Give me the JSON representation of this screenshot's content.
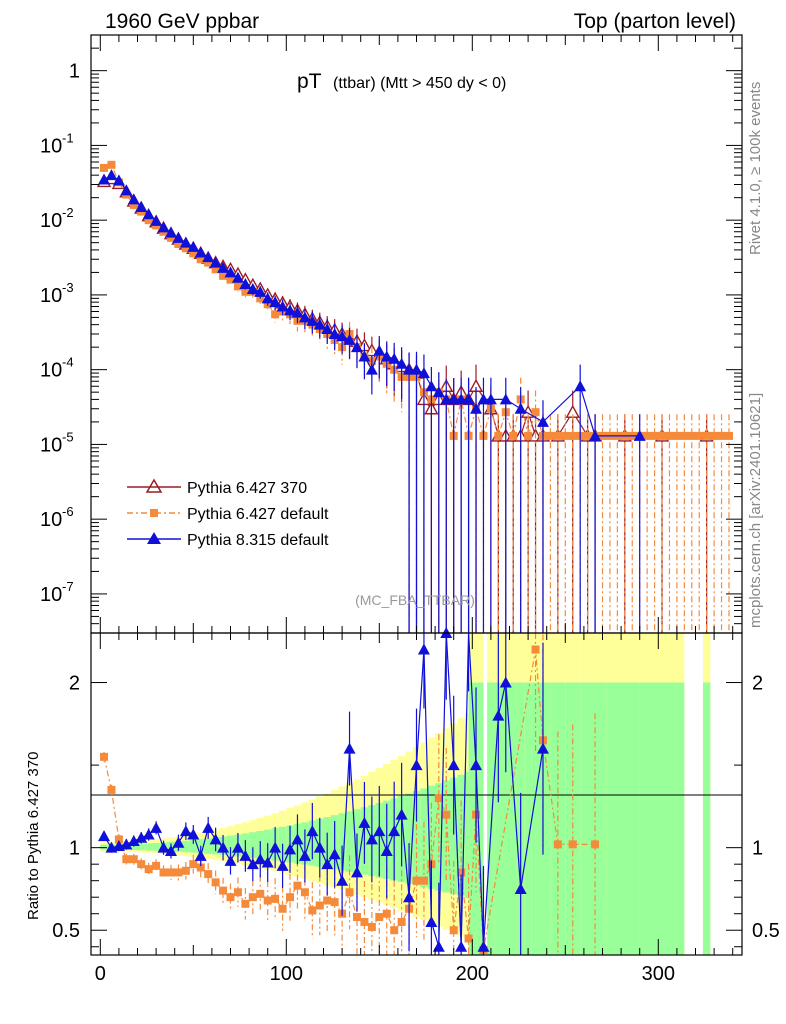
{
  "header": {
    "left": "1960 GeV ppbar",
    "right": "Top (parton level)"
  },
  "side_labels": {
    "rivet": "Rivet 4.1.0, ≥ 100k events",
    "mcplots": "mcplots.cern.ch [arXiv:2401.10621]"
  },
  "title": {
    "main": "pT",
    "sub": "(ttbar) (Mtt > 450 dy < 0)"
  },
  "watermark": "(MC_FBA_TTBAR)",
  "ratio_ylabel": "Ratio to Pythia 6.427 370",
  "colors": {
    "p6_370": "#9b1c25",
    "p6_default": "#f58a3a",
    "p8": "#1010d8",
    "band_yellow": "#ffff99",
    "band_green": "#99ff99"
  },
  "chart_data": {
    "type": "scatter",
    "xlabel": "",
    "xlim": [
      -5,
      345
    ],
    "x_ticks": [
      "0",
      "100",
      "200",
      "300"
    ],
    "x_tick_values": [
      0,
      100,
      200,
      300
    ],
    "main": {
      "yscale": "log",
      "ylim": [
        3e-08,
        3
      ],
      "y_ticks": [
        "1",
        "10^-1",
        "10^-2",
        "10^-3",
        "10^-4",
        "10^-5",
        "10^-6",
        "10^-7"
      ]
    },
    "ratio": {
      "ylim": [
        0.35,
        2.3
      ],
      "y_ticks": [
        "0.5",
        "1",
        "2"
      ],
      "y_tick_values": [
        0.5,
        1,
        2
      ]
    },
    "series": [
      {
        "name": "Pythia 6.427 370",
        "x": [
          2,
          6,
          10,
          14,
          18,
          22,
          26,
          30,
          34,
          38,
          42,
          46,
          50,
          54,
          58,
          62,
          66,
          70,
          74,
          78,
          82,
          86,
          90,
          94,
          98,
          102,
          106,
          110,
          114,
          118,
          122,
          126,
          130,
          134,
          138,
          142,
          146,
          150,
          154,
          158,
          162,
          166,
          170,
          174,
          178,
          182,
          186,
          190,
          194,
          198,
          202,
          210,
          214,
          218,
          222,
          226,
          230,
          234,
          238,
          246,
          254,
          262,
          266,
          282,
          302,
          326
        ],
        "y": [
          0.033,
          0.036,
          0.031,
          0.024,
          0.018,
          0.0145,
          0.0115,
          0.0095,
          0.0078,
          0.0066,
          0.0056,
          0.0048,
          0.0042,
          0.0036,
          0.0031,
          0.0027,
          0.0024,
          0.0022,
          0.0019,
          0.0016,
          0.00135,
          0.0012,
          0.001,
          0.00088,
          0.00078,
          0.0007,
          0.00062,
          0.00055,
          0.00048,
          0.00043,
          0.00038,
          0.00034,
          0.0003,
          0.00026,
          0.00024,
          0.00021,
          0.00018,
          0.00016,
          0.00014,
          0.00012,
          0.00011,
          0.0001,
          9e-05,
          4e-05,
          3e-05,
          4e-05,
          6e-05,
          4e-05,
          5e-05,
          4e-05,
          6e-05,
          3e-05,
          1.3e-05,
          1.3e-05,
          1.3e-05,
          1.3e-05,
          2.7e-05,
          1.3e-05,
          1.3e-05,
          1.3e-05,
          2.7e-05,
          1.3e-05,
          1.3e-05,
          1.3e-05,
          1.3e-05,
          1.3e-05
        ]
      },
      {
        "name": "Pythia 6.427 default",
        "x": [
          2,
          6,
          10,
          14,
          18,
          22,
          26,
          30,
          34,
          38,
          42,
          46,
          50,
          54,
          58,
          62,
          66,
          70,
          74,
          78,
          82,
          86,
          90,
          94,
          98,
          102,
          106,
          110,
          114,
          118,
          122,
          126,
          130,
          134,
          138,
          142,
          146,
          150,
          154,
          158,
          162,
          166,
          170,
          174,
          178,
          182,
          186,
          190,
          194,
          198,
          202,
          206,
          210,
          214,
          218,
          222,
          226,
          230,
          234,
          238,
          242,
          246,
          250,
          254,
          258,
          262,
          266,
          270,
          274,
          278,
          282,
          286,
          290,
          294,
          298,
          302,
          306,
          310,
          314,
          318,
          322,
          326,
          330,
          334,
          338
        ],
        "y": [
          0.05,
          0.055,
          0.032,
          0.022,
          0.016,
          0.013,
          0.01,
          0.0085,
          0.007,
          0.0058,
          0.0048,
          0.0042,
          0.0036,
          0.003,
          0.0027,
          0.0022,
          0.0018,
          0.0016,
          0.0013,
          0.0011,
          0.0011,
          0.0009,
          0.00075,
          0.00055,
          0.0006,
          0.00055,
          0.00045,
          0.00045,
          0.0004,
          0.00035,
          0.0003,
          0.00025,
          0.0002,
          0.0003,
          0.0002,
          0.00015,
          0.00013,
          0.00015,
          0.00012,
          0.0001,
          8e-05,
          8e-05,
          8e-05,
          5e-05,
          4e-05,
          5e-05,
          4e-05,
          1.3e-05,
          4e-05,
          1.3e-05,
          3e-05,
          1.3e-05,
          3e-05,
          1.3e-05,
          2.7e-05,
          1.3e-05,
          4e-05,
          1.3e-05,
          2.7e-05,
          1.3e-05,
          1.3e-05,
          1.3e-05,
          1.3e-05,
          1.3e-05,
          1.3e-05,
          1.3e-05,
          1.3e-05,
          1.3e-05,
          1.3e-05,
          1.3e-05,
          1.3e-05,
          1.3e-05,
          1.3e-05,
          1.3e-05,
          1.3e-05,
          1.3e-05,
          1.3e-05,
          1.3e-05,
          1.3e-05,
          1.3e-05,
          1.3e-05,
          1.3e-05,
          1.3e-05,
          1.3e-05,
          1.3e-05
        ]
      },
      {
        "name": "Pythia 8.315 default",
        "x": [
          2,
          6,
          10,
          14,
          18,
          22,
          26,
          30,
          34,
          38,
          42,
          46,
          50,
          54,
          58,
          62,
          66,
          70,
          74,
          78,
          82,
          86,
          90,
          94,
          98,
          102,
          106,
          110,
          114,
          118,
          122,
          126,
          130,
          134,
          138,
          142,
          146,
          150,
          154,
          158,
          162,
          166,
          170,
          174,
          178,
          182,
          186,
          190,
          194,
          198,
          202,
          206,
          210,
          218,
          226,
          238,
          258,
          266,
          290
        ],
        "y": [
          0.035,
          0.04,
          0.034,
          0.025,
          0.019,
          0.015,
          0.012,
          0.0098,
          0.008,
          0.0068,
          0.0058,
          0.005,
          0.0044,
          0.0037,
          0.0032,
          0.0027,
          0.0023,
          0.002,
          0.0017,
          0.0014,
          0.0012,
          0.0011,
          0.0009,
          0.0008,
          0.0007,
          0.00062,
          0.00058,
          0.0005,
          0.00045,
          0.0004,
          0.00035,
          0.0003,
          0.00028,
          0.00025,
          0.0002,
          0.00015,
          0.0001,
          0.00018,
          0.00015,
          0.00014,
          0.00012,
          0.0001,
          0.0001,
          9e-05,
          6e-05,
          5e-05,
          4e-05,
          4e-05,
          4e-05,
          4e-05,
          3e-05,
          4e-05,
          4e-05,
          4e-05,
          3e-05,
          2e-05,
          6e-05,
          1.3e-05,
          1.3e-05
        ]
      }
    ],
    "ratio_series": [
      {
        "name": "Pythia 6.427 default",
        "x": [
          2,
          6,
          10,
          14,
          18,
          22,
          26,
          30,
          34,
          38,
          42,
          46,
          50,
          54,
          58,
          62,
          66,
          70,
          74,
          78,
          82,
          86,
          90,
          94,
          98,
          102,
          106,
          110,
          114,
          118,
          122,
          126,
          130,
          134,
          138,
          142,
          146,
          150,
          154,
          158,
          162,
          166,
          170,
          174,
          178,
          182,
          186,
          190,
          194,
          198,
          202,
          206,
          234,
          238,
          246,
          254,
          266
        ],
        "y": [
          1.55,
          1.35,
          1.05,
          0.93,
          0.93,
          0.9,
          0.87,
          0.89,
          0.85,
          0.85,
          0.85,
          0.86,
          0.9,
          0.88,
          0.84,
          0.79,
          0.74,
          0.7,
          0.73,
          0.66,
          0.7,
          0.72,
          0.68,
          0.69,
          0.63,
          0.7,
          0.77,
          0.73,
          0.62,
          0.65,
          0.68,
          0.67,
          0.6,
          0.73,
          0.58,
          0.55,
          0.52,
          0.58,
          0.6,
          0.5,
          0.55,
          0.63,
          0.8,
          0.8,
          0.9,
          1.3,
          1.2,
          0.5,
          0.85,
          0.45,
          1.2,
          0.38,
          2.2,
          1.65,
          1.02,
          1.02,
          1.02
        ]
      },
      {
        "name": "Pythia 8.315 default",
        "x": [
          2,
          6,
          10,
          14,
          18,
          22,
          26,
          30,
          34,
          38,
          42,
          46,
          50,
          54,
          58,
          62,
          66,
          70,
          74,
          78,
          82,
          86,
          90,
          94,
          98,
          102,
          106,
          110,
          114,
          118,
          122,
          126,
          130,
          134,
          138,
          142,
          146,
          150,
          154,
          158,
          162,
          166,
          170,
          174,
          178,
          182,
          186,
          190,
          194,
          198,
          202,
          206,
          214,
          218,
          226,
          238
        ],
        "y": [
          1.07,
          1.0,
          1.01,
          1.02,
          1.04,
          1.06,
          1.08,
          1.12,
          1.0,
          0.98,
          1.03,
          1.1,
          1.08,
          0.95,
          1.12,
          1.05,
          1.0,
          0.92,
          1.0,
          0.95,
          0.9,
          0.93,
          0.91,
          1.0,
          0.89,
          0.99,
          1.05,
          0.95,
          1.1,
          1.0,
          0.9,
          0.96,
          0.8,
          1.6,
          0.85,
          1.15,
          1.05,
          1.1,
          0.98,
          1.1,
          1.2,
          0.7,
          1.5,
          2.2,
          0.55,
          0.4,
          2.3,
          1.5,
          0.4,
          2.4,
          1.5,
          0.4,
          1.8,
          2.0,
          0.75,
          1.6
        ]
      }
    ]
  }
}
